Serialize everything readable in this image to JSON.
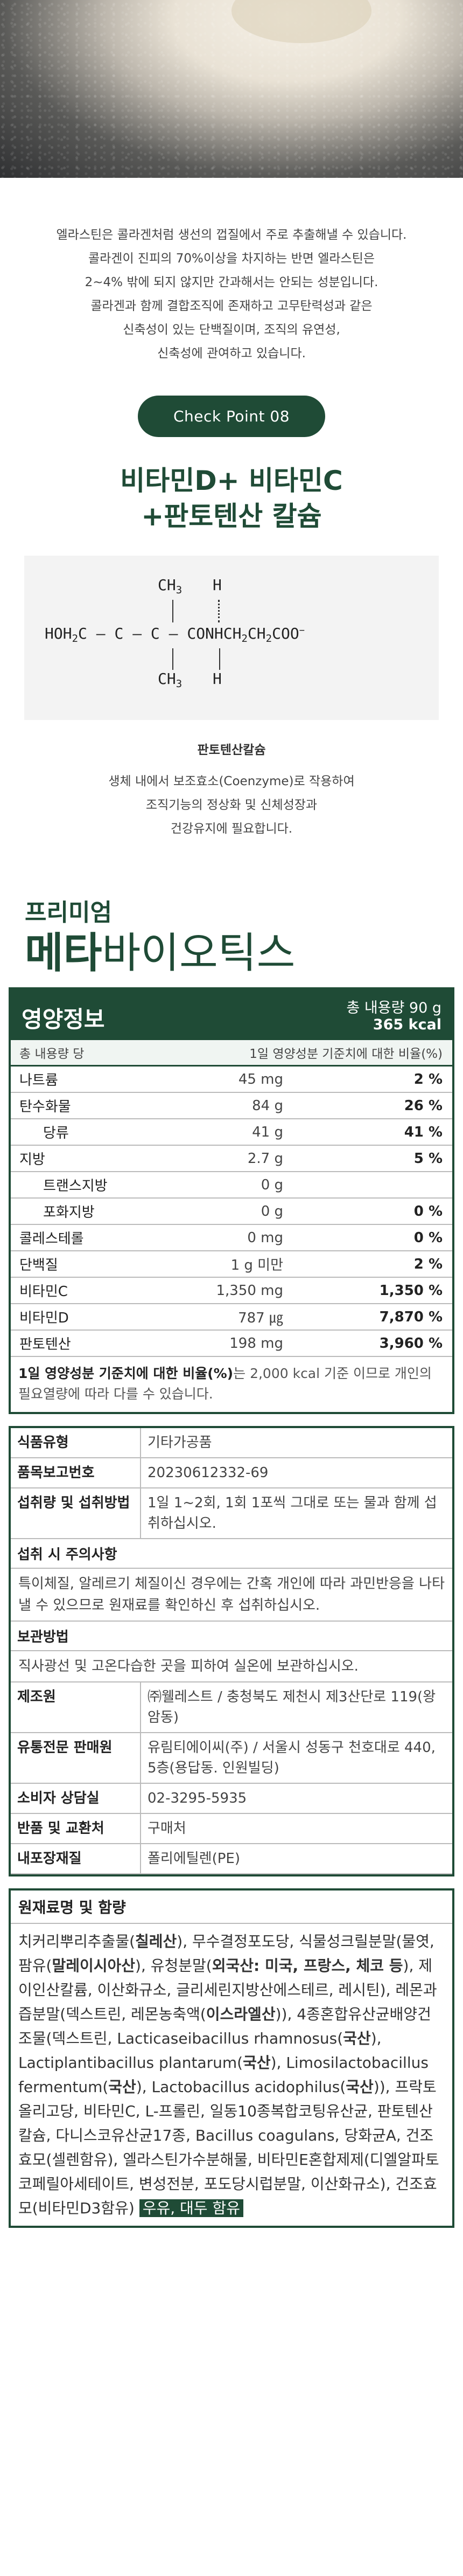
{
  "intro": [
    "엘라스틴은 콜라겐처럼 생선의 껍질에서 주로 추출해낼 수 있습니다.",
    "콜라겐이 진피의 70%이상을 차지하는 반면 엘라스틴은",
    "2~4% 밖에 되지 않지만 간과해서는 안되는 성분입니다.",
    "콜라겐과 함께 결합조직에 존재하고 고무탄력성과 같은",
    "신축성이 있는 단백질이며, 조직의 유연성,",
    "신축성에 관여하고 있습니다."
  ],
  "badge": "Check Point 08",
  "title_line1": "비타민D+ 비타민C",
  "title_line2": "+판토텐산 칼슘",
  "formula": {
    "top_left": "CH",
    "top_right": "H",
    "left": "HOH",
    "left_tail": "C",
    "mid": "C",
    "mid2": "C",
    "right": "CONHCH",
    "right2": "CH",
    "right3": "COO",
    "bottom_left": "CH",
    "bottom_right": "H",
    "sub2": "2",
    "sub3": "3",
    "minus": "−",
    "dash": "–"
  },
  "formula_caption": "판토텐산칼슘",
  "formula_desc": [
    "생체 내에서 보조효소(Coenzyme)로 작용하여",
    "조직기능의 정상화 및 신체성장과",
    "건강유지에 필요합니다."
  ],
  "product": {
    "small": "프리미엄",
    "big_bold": "메타",
    "big_rest": "바이오틱스"
  },
  "nutrition": {
    "header": "영양정보",
    "total_label": "총 내용량 90 g",
    "kcal": "365 kcal",
    "sub_left": "총 내용량 당",
    "sub_right": "1일 영양성분 기준치에 대한 비율(%)",
    "rows": [
      {
        "label": "나트륨",
        "amount": "45 mg",
        "pct": "2 %",
        "indent": false
      },
      {
        "label": "탄수화물",
        "amount": "84 g",
        "pct": "26 %",
        "indent": false
      },
      {
        "label": "당류",
        "amount": "41 g",
        "pct": "41 %",
        "indent": true
      },
      {
        "label": "지방",
        "amount": "2.7 g",
        "pct": "5 %",
        "indent": false
      },
      {
        "label": "트랜스지방",
        "amount": "0 g",
        "pct": "",
        "indent": true
      },
      {
        "label": "포화지방",
        "amount": "0 g",
        "pct": "0 %",
        "indent": true
      },
      {
        "label": "콜레스테롤",
        "amount": "0 mg",
        "pct": "0 %",
        "indent": false
      },
      {
        "label": "단백질",
        "amount": "1 g 미만",
        "pct": "2 %",
        "indent": false
      },
      {
        "label": "비타민C",
        "amount": "1,350 mg",
        "pct": "1,350 %",
        "indent": false
      },
      {
        "label": "비타민D",
        "amount": "787 ㎍",
        "pct": "7,870 %",
        "indent": false
      },
      {
        "label": "판토텐산",
        "amount": "198 mg",
        "pct": "3,960 %",
        "indent": false
      }
    ],
    "foot_bold": "1일 영양성분 기준치에 대한 비율(%)",
    "foot_rest": "는 2,000 kcal 기준 이므로 개인의 필요열량에 따라 다를 수 있습니다."
  },
  "info": {
    "rows": [
      {
        "k": "식품유형",
        "v": "기타가공품"
      },
      {
        "k": "품목보고번호",
        "v": "20230612332-69"
      },
      {
        "k": "섭취량 및 섭취방법",
        "v": "1일 1~2회, 1회 1포씩 그대로 또는 물과 함께 섭취하십시오."
      }
    ],
    "caution_h": "섭취 시 주의사항",
    "caution_b": "특이체질, 알레르기 체질이신 경우에는 간혹 개인에 따라 과민반응을 나타낼 수 있으므로 원재료를 확인하신 후 섭취하십시오.",
    "storage_h": "보관방법",
    "storage_b": "직사광선 및 고온다습한 곳을 피하여 실온에 보관하십시오.",
    "rows2": [
      {
        "k": "제조원",
        "v": "㈜웰레스트 / 충청북도 제천시 제3산단로 119(왕암동)"
      },
      {
        "k": "유통전문 판매원",
        "v": "유림티에이씨(주) / 서울시 성동구 천호대로 440, 5층(용답동. 인원빌딩)"
      },
      {
        "k": "소비자 상담실",
        "v": "02-3295-5935"
      },
      {
        "k": "반품 및 교환처",
        "v": "구매처"
      },
      {
        "k": "내포장재질",
        "v": "폴리에틸렌(PE)"
      }
    ]
  },
  "ingredients": {
    "header": "원재료명 및 함량",
    "body_parts": [
      {
        "t": "치커리뿌리추출물(",
        "b": false
      },
      {
        "t": "칠레산",
        "b": true
      },
      {
        "t": "), 무수결정포도당, 식물성크릴분말(물엿, 팜유(",
        "b": false
      },
      {
        "t": "말레이시아산",
        "b": true
      },
      {
        "t": "), 유청분말(",
        "b": false
      },
      {
        "t": "외국산: 미국, 프랑스, 체코 등",
        "b": true
      },
      {
        "t": "), 제이인산칼륨, 이산화규소, 글리세린지방산에스테르, 레시틴), 레몬과즙분말(덱스트린, 레몬농축액(",
        "b": false
      },
      {
        "t": "이스라엘산",
        "b": true
      },
      {
        "t": ")), 4종혼합유산균배양건조물(덱스트린, Lacticaseibacillus rhamnosus(",
        "b": false
      },
      {
        "t": "국산",
        "b": true
      },
      {
        "t": "), Lactiplantibacillus plantarum(",
        "b": false
      },
      {
        "t": "국산",
        "b": true
      },
      {
        "t": "), Limosilactobacillus fermentum(",
        "b": false
      },
      {
        "t": "국산",
        "b": true
      },
      {
        "t": "), Lactobacillus acidophilus(",
        "b": false
      },
      {
        "t": "국산",
        "b": true
      },
      {
        "t": ")), 프락토올리고당, 비타민C, L-프롤린, 일동10종복합코팅유산균, 판토텐산칼슘, 다니스코유산균17종, Bacillus coagulans, 당화균A, 건조효모(셀렌함유), 엘라스틴가수분해물, 비타민E혼합제제(디엘알파토코페릴아세테이트, 변성전분, 포도당시럽분말, 이산화규소), 건조효모(비타민D3함유) ",
        "b": false
      }
    ],
    "allergen": "우유, 대두 함유"
  }
}
